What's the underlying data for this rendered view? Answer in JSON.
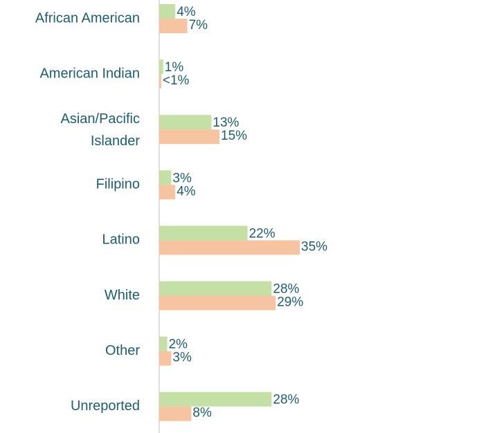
{
  "chart_data": {
    "type": "bar",
    "orientation": "horizontal",
    "categories": [
      "African American",
      "American Indian",
      "Asian/Pacific Islander",
      "Filipino",
      "Latino",
      "White",
      "Other",
      "Unreported"
    ],
    "series": [
      {
        "color": "#c5e0a4",
        "values": [
          4,
          1,
          13,
          3,
          22,
          28,
          2,
          28
        ],
        "value_labels": [
          "4%",
          "1%",
          "13%",
          "3%",
          "22%",
          "28%",
          "2%",
          "28%"
        ]
      },
      {
        "color": "#f7c4a1",
        "values": [
          7,
          0.5,
          15,
          4,
          35,
          29,
          3,
          8
        ],
        "value_labels": [
          "7%",
          "<1%",
          "15%",
          "4%",
          "35%",
          "29%",
          "3%",
          "8%"
        ]
      }
    ]
  }
}
